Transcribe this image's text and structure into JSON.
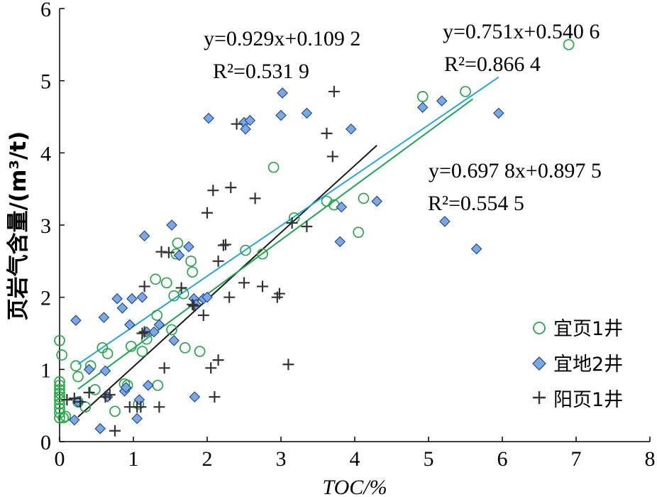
{
  "chart_data": {
    "type": "scatter",
    "xlabel": "TOC/%",
    "ylabel": "页岩气含量/(m³/t)",
    "xlim": [
      0,
      8
    ],
    "ylim": [
      0,
      6
    ],
    "xticks": [
      "0",
      "1",
      "2",
      "3",
      "4",
      "5",
      "6",
      "7",
      "8"
    ],
    "yticks": [
      "0",
      "1",
      "2",
      "3",
      "4",
      "5",
      "6"
    ],
    "grid": false,
    "legend_position": "bottom-right",
    "colors": {
      "series1": "#22aa44",
      "series2": "#7aa9e8",
      "series2_edge": "#1f3f8f",
      "series3": "#333333",
      "fit1": "#1a1a1a",
      "fit2": "#1aa84a",
      "fit3": "#1ea7e0"
    },
    "series": [
      {
        "name": "宜页1井",
        "marker": "circle",
        "points": [
          [
            0,
            1.4
          ],
          [
            0.03,
            1.2
          ],
          [
            0,
            0.83
          ],
          [
            0,
            0.78
          ],
          [
            0,
            0.72
          ],
          [
            0,
            0.67
          ],
          [
            0,
            0.62
          ],
          [
            0,
            0.58
          ],
          [
            0,
            0.52
          ],
          [
            0,
            0.46
          ],
          [
            0,
            0.4
          ],
          [
            0,
            0.33
          ],
          [
            0.05,
            0.33
          ],
          [
            0.08,
            0.35
          ],
          [
            0.22,
            1.05
          ],
          [
            0.25,
            0.9
          ],
          [
            0.25,
            0.55
          ],
          [
            0.35,
            0.48
          ],
          [
            0.42,
            1.05
          ],
          [
            0.48,
            0.72
          ],
          [
            0.58,
            1.3
          ],
          [
            0.65,
            1.22
          ],
          [
            0.75,
            0.42
          ],
          [
            0.88,
            0.8
          ],
          [
            0.92,
            0.78
          ],
          [
            0.97,
            1.32
          ],
          [
            1.07,
            0.52
          ],
          [
            1.12,
            1.25
          ],
          [
            1.18,
            1.42
          ],
          [
            1.3,
            2.25
          ],
          [
            1.32,
            1.75
          ],
          [
            1.33,
            0.78
          ],
          [
            1.45,
            2.2
          ],
          [
            1.52,
            1.55
          ],
          [
            1.55,
            2.02
          ],
          [
            1.58,
            2.6
          ],
          [
            1.6,
            2.75
          ],
          [
            1.68,
            2.05
          ],
          [
            1.7,
            1.3
          ],
          [
            1.78,
            2.5
          ],
          [
            1.8,
            2.35
          ],
          [
            1.9,
            1.25
          ],
          [
            2.52,
            2.65
          ],
          [
            2.75,
            2.6
          ],
          [
            2.9,
            3.8
          ],
          [
            3.18,
            3.1
          ],
          [
            3.62,
            3.33
          ],
          [
            3.72,
            3.28
          ],
          [
            4.05,
            2.9
          ],
          [
            4.12,
            3.37
          ],
          [
            4.92,
            4.78
          ],
          [
            5.5,
            4.85
          ],
          [
            6.9,
            5.5
          ]
        ]
      },
      {
        "name": "宜地2井",
        "marker": "diamond",
        "points": [
          [
            0.2,
            0.3
          ],
          [
            0.22,
            1.68
          ],
          [
            0.25,
            0.55
          ],
          [
            0.4,
            1.0
          ],
          [
            0.55,
            0.18
          ],
          [
            0.6,
            1.72
          ],
          [
            0.62,
            0.98
          ],
          [
            0.65,
            0.62
          ],
          [
            0.78,
            1.98
          ],
          [
            0.85,
            1.85
          ],
          [
            0.88,
            0.7
          ],
          [
            0.9,
            0.75
          ],
          [
            0.95,
            1.62
          ],
          [
            0.98,
            1.98
          ],
          [
            1.05,
            0.32
          ],
          [
            1.08,
            0.58
          ],
          [
            1.12,
            2.0
          ],
          [
            1.15,
            2.85
          ],
          [
            1.18,
            1.52
          ],
          [
            1.2,
            0.78
          ],
          [
            1.28,
            1.52
          ],
          [
            1.35,
            1.62
          ],
          [
            1.52,
            3.0
          ],
          [
            1.55,
            1.4
          ],
          [
            1.62,
            2.58
          ],
          [
            1.75,
            2.7
          ],
          [
            1.82,
            1.98
          ],
          [
            1.83,
            0.62
          ],
          [
            1.85,
            1.9
          ],
          [
            1.95,
            1.98
          ],
          [
            2.0,
            2.0
          ],
          [
            2.02,
            4.48
          ],
          [
            2.5,
            4.42
          ],
          [
            2.52,
            4.33
          ],
          [
            2.58,
            4.45
          ],
          [
            3.0,
            4.52
          ],
          [
            3.02,
            4.83
          ],
          [
            3.35,
            4.55
          ],
          [
            3.82,
            3.25
          ],
          [
            3.95,
            4.33
          ],
          [
            3.8,
            2.77
          ],
          [
            4.3,
            3.33
          ],
          [
            4.92,
            4.63
          ],
          [
            5.18,
            4.72
          ],
          [
            5.22,
            3.05
          ],
          [
            5.65,
            2.67
          ],
          [
            5.95,
            4.55
          ]
        ]
      },
      {
        "name": "阳页1井",
        "marker": "plus",
        "points": [
          [
            0.1,
            0.58
          ],
          [
            0.2,
            0.6
          ],
          [
            0.28,
            0.55
          ],
          [
            0.4,
            0.68
          ],
          [
            0.62,
            0.62
          ],
          [
            0.68,
            0.65
          ],
          [
            0.75,
            0.15
          ],
          [
            0.95,
            0.48
          ],
          [
            1.05,
            0.48
          ],
          [
            1.1,
            0.48
          ],
          [
            1.12,
            1.5
          ],
          [
            1.15,
            1.52
          ],
          [
            1.15,
            2.15
          ],
          [
            1.35,
            0.48
          ],
          [
            1.38,
            2.63
          ],
          [
            1.42,
            1.02
          ],
          [
            1.48,
            2.62
          ],
          [
            1.65,
            2.13
          ],
          [
            1.8,
            1.9
          ],
          [
            1.82,
            1.88
          ],
          [
            1.95,
            1.75
          ],
          [
            2.0,
            3.17
          ],
          [
            2.05,
            1.02
          ],
          [
            2.08,
            3.48
          ],
          [
            2.1,
            0.62
          ],
          [
            2.15,
            2.5
          ],
          [
            2.15,
            1.13
          ],
          [
            2.22,
            2.72
          ],
          [
            2.25,
            2.73
          ],
          [
            2.3,
            2.0
          ],
          [
            2.32,
            3.52
          ],
          [
            2.4,
            4.4
          ],
          [
            2.5,
            2.2
          ],
          [
            2.65,
            3.37
          ],
          [
            2.75,
            2.15
          ],
          [
            2.95,
            2.0
          ],
          [
            2.98,
            2.05
          ],
          [
            3.1,
            1.07
          ],
          [
            3.15,
            3.03
          ],
          [
            3.35,
            2.98
          ],
          [
            3.62,
            4.27
          ],
          [
            3.7,
            3.95
          ],
          [
            3.72,
            4.85
          ]
        ]
      }
    ],
    "fit_lines": [
      {
        "series": "阳页1井",
        "slope": 0.929,
        "intercept": 0.1092,
        "x_range": [
          0.25,
          4.3
        ],
        "equation": "y=0.929x+0.109 2",
        "r2": "R²=0.531 9"
      },
      {
        "series": "宜页1井",
        "slope": 0.751,
        "intercept": 0.5406,
        "x_range": [
          0.25,
          5.6
        ],
        "equation": "y=0.751x+0.540 6",
        "r2": "R²=0.866 4"
      },
      {
        "series": "宜地2井",
        "slope": 0.6978,
        "intercept": 0.8975,
        "x_range": [
          0.25,
          5.95
        ],
        "equation": "y=0.697 8x+0.897 5",
        "r2": "R²=0.554 5"
      }
    ]
  }
}
